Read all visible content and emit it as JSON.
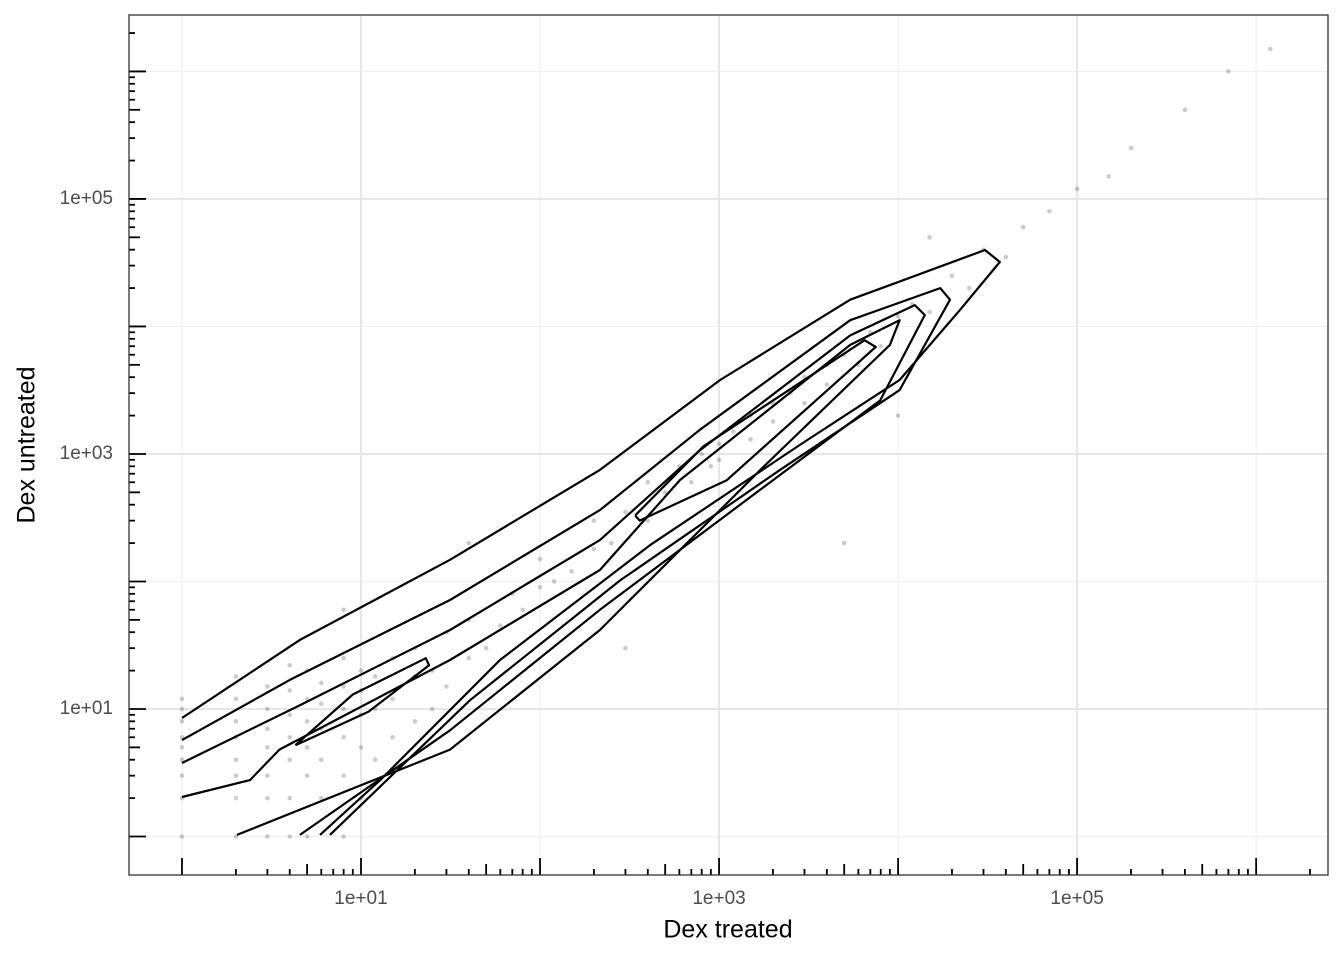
{
  "chart_data": {
    "type": "scatter",
    "xlabel": "Dex treated",
    "ylabel": "Dex untreated",
    "xscale": "log",
    "yscale": "log",
    "xlim": [
      0.506,
      2520000
    ],
    "ylim": [
      0.499,
      2770000
    ],
    "xticks": [
      {
        "value": 10,
        "label": "1e+01"
      },
      {
        "value": 1000,
        "label": "1e+03"
      },
      {
        "value": 100000,
        "label": "1e+05"
      }
    ],
    "yticks": [
      {
        "value": 10,
        "label": "1e+01"
      },
      {
        "value": 1000,
        "label": "1e+03"
      },
      {
        "value": 100000,
        "label": "1e+05"
      }
    ],
    "xminor": [
      1,
      100,
      10000,
      1000000
    ],
    "yminor": [
      1,
      100,
      10000,
      1000000
    ],
    "logticks": [
      1,
      2,
      3,
      4,
      5,
      6,
      7,
      8,
      9,
      10,
      20,
      30,
      40,
      50,
      60,
      70,
      80,
      90,
      100,
      200,
      300,
      400,
      500,
      600,
      700,
      800,
      900,
      1000,
      2000,
      3000,
      4000,
      5000,
      6000,
      7000,
      8000,
      9000,
      10000,
      20000,
      30000,
      40000,
      50000,
      60000,
      70000,
      80000,
      90000,
      100000,
      200000,
      300000,
      400000,
      500000,
      600000,
      700000,
      800000,
      900000,
      1000000,
      2000000
    ],
    "grid": true,
    "color": "#000000",
    "point_alpha": 0.2,
    "points": [
      [
        1,
        1
      ],
      [
        1,
        2
      ],
      [
        1,
        3
      ],
      [
        1,
        4
      ],
      [
        1,
        5
      ],
      [
        1,
        6
      ],
      [
        1,
        8
      ],
      [
        1,
        10
      ],
      [
        1,
        12
      ],
      [
        2,
        1
      ],
      [
        2,
        2
      ],
      [
        2,
        3
      ],
      [
        2,
        4
      ],
      [
        2,
        6
      ],
      [
        2,
        8
      ],
      [
        2,
        12
      ],
      [
        2,
        18
      ],
      [
        3,
        1
      ],
      [
        3,
        2
      ],
      [
        3,
        3
      ],
      [
        3,
        5
      ],
      [
        3,
        7
      ],
      [
        3,
        10
      ],
      [
        3,
        15
      ],
      [
        4,
        1
      ],
      [
        4,
        2
      ],
      [
        4,
        4
      ],
      [
        4,
        6
      ],
      [
        4,
        9
      ],
      [
        4,
        14
      ],
      [
        4,
        22
      ],
      [
        5,
        1
      ],
      [
        5,
        3
      ],
      [
        5,
        5
      ],
      [
        5,
        8
      ],
      [
        5,
        12
      ],
      [
        5,
        20
      ],
      [
        6,
        2
      ],
      [
        6,
        4
      ],
      [
        6,
        7
      ],
      [
        6,
        11
      ],
      [
        6,
        16
      ],
      [
        8,
        1
      ],
      [
        8,
        3
      ],
      [
        8,
        6
      ],
      [
        8,
        10
      ],
      [
        8,
        15
      ],
      [
        8,
        25
      ],
      [
        10,
        2
      ],
      [
        10,
        5
      ],
      [
        10,
        9
      ],
      [
        10,
        14
      ],
      [
        10,
        20
      ],
      [
        12,
        4
      ],
      [
        12,
        10
      ],
      [
        12,
        18
      ],
      [
        15,
        6
      ],
      [
        15,
        12
      ],
      [
        15,
        25
      ],
      [
        20,
        8
      ],
      [
        20,
        18
      ],
      [
        20,
        30
      ],
      [
        25,
        10
      ],
      [
        25,
        20
      ],
      [
        30,
        15
      ],
      [
        30,
        40
      ],
      [
        40,
        25
      ],
      [
        40,
        50
      ],
      [
        50,
        30
      ],
      [
        60,
        45
      ],
      [
        70,
        80
      ],
      [
        80,
        60
      ],
      [
        100,
        90
      ],
      [
        100,
        150
      ],
      [
        120,
        100
      ],
      [
        150,
        120
      ],
      [
        200,
        180
      ],
      [
        200,
        300
      ],
      [
        250,
        200
      ],
      [
        300,
        350
      ],
      [
        400,
        300
      ],
      [
        400,
        600
      ],
      [
        500,
        500
      ],
      [
        600,
        800
      ],
      [
        700,
        600
      ],
      [
        800,
        1000
      ],
      [
        900,
        800
      ],
      [
        1000,
        1200
      ],
      [
        1000,
        900
      ],
      [
        1200,
        1500
      ],
      [
        1500,
        1300
      ],
      [
        1500,
        2000
      ],
      [
        2000,
        1800
      ],
      [
        2000,
        2500
      ],
      [
        2500,
        3000
      ],
      [
        3000,
        2500
      ],
      [
        3000,
        4000
      ],
      [
        4000,
        3500
      ],
      [
        4000,
        5000
      ],
      [
        5000,
        6000
      ],
      [
        6000,
        5000
      ],
      [
        7000,
        9000
      ],
      [
        8000,
        7000
      ],
      [
        10000,
        12000
      ],
      [
        12000,
        15000
      ],
      [
        15000,
        13000
      ],
      [
        20000,
        25000
      ],
      [
        25000,
        20000
      ],
      [
        30000,
        40000
      ],
      [
        40000,
        35000
      ],
      [
        50000,
        60000
      ],
      [
        70000,
        80000
      ],
      [
        100000,
        120000
      ],
      [
        150000,
        150000
      ],
      [
        200000,
        250000
      ],
      [
        400000,
        500000
      ],
      [
        700000,
        1000000
      ],
      [
        1200000,
        1500000
      ],
      [
        300,
        30
      ],
      [
        10000,
        2000
      ],
      [
        5000,
        200
      ],
      [
        40,
        200
      ],
      [
        8,
        60
      ],
      [
        15000,
        50000
      ]
    ],
    "contours": [
      {
        "x": [
          1,
          4.56,
          31.4,
          216,
          1014,
          5400,
          30600,
          37000,
          22200,
          10200,
          2820,
          412,
          59.8,
          12.8,
          5.9
        ],
        "y": [
          8.5,
          34.8,
          148,
          750,
          3800,
          16200,
          39800,
          32000,
          13500,
          3800,
          1175,
          193,
          24.2,
          2.77,
          1.03
        ]
      },
      {
        "x": [
          1,
          4.0,
          31.4,
          216,
          783,
          5400,
          17200,
          19500,
          10200,
          2190,
          280,
          40.6,
          6.7
        ],
        "y": [
          5.7,
          16.9,
          71.6,
          363,
          1550,
          11200,
          20000,
          16200,
          3170,
          750,
          102,
          11.7,
          1.03
        ]
      },
      {
        "x": [
          1,
          4.56,
          31.4,
          216,
          783,
          5400,
          12400,
          14100,
          7950,
          1700,
          216,
          31.4,
          4.56
        ],
        "y": [
          3.77,
          10.7,
          41.6,
          211,
          1070,
          8500,
          14700,
          12300,
          2630,
          525,
          60,
          6.8,
          1.03
        ]
      },
      {
        "x": [
          1,
          2.4,
          3.5,
          31.4,
          216,
          605,
          5400,
          10200,
          9000,
          1700,
          216,
          31.4,
          2.03
        ],
        "y": [
          2.04,
          2.77,
          4.8,
          24.2,
          123,
          625,
          7160,
          11200,
          7160,
          750,
          41.6,
          4.8,
          1.03
        ]
      },
      {
        "x": [
          4.3,
          9.0,
          23,
          24,
          11,
          4.3
        ],
        "y": [
          5.2,
          13,
          25,
          22,
          9.5,
          5.2
        ]
      },
      {
        "x": [
          340,
          820,
          6500,
          7500,
          1100,
          360,
          340
        ],
        "y": [
          330,
          1150,
          7800,
          6900,
          620,
          300,
          330
        ]
      }
    ]
  }
}
